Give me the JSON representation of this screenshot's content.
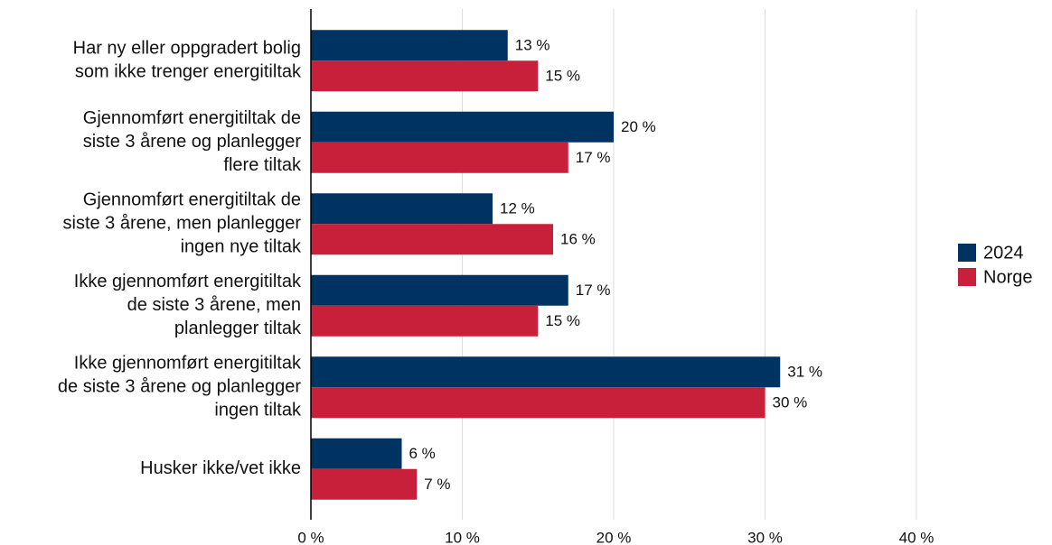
{
  "chart_data": {
    "type": "barh",
    "categories": [
      [
        "Har ny eller oppgradert bolig",
        "som ikke trenger energitiltak"
      ],
      [
        "Gjennomført energitiltak de",
        "siste 3 årene og planlegger",
        "flere tiltak"
      ],
      [
        "Gjennomført energitiltak de",
        "siste 3 årene, men planlegger",
        "ingen nye tiltak"
      ],
      [
        "Ikke gjennomført energitiltak",
        "de siste 3 årene, men",
        "planlegger tiltak"
      ],
      [
        "Ikke gjennomført energitiltak",
        "de siste 3 årene og planlegger",
        "ingen tiltak"
      ],
      [
        "Husker ikke/vet ikke"
      ]
    ],
    "series": [
      {
        "name": "2024",
        "color": "#003361",
        "values": [
          13,
          20,
          12,
          17,
          31,
          6
        ],
        "value_labels": [
          "13 %",
          "20 %",
          "12 %",
          "17 %",
          "31 %",
          "6 %"
        ]
      },
      {
        "name": "Norge",
        "color": "#c8203a",
        "values": [
          15,
          17,
          16,
          15,
          30,
          7
        ],
        "value_labels": [
          "15 %",
          "17 %",
          "16 %",
          "15 %",
          "30 %",
          "7 %"
        ]
      }
    ],
    "xlim": [
      0,
      40
    ],
    "xticks": [
      {
        "value": 0,
        "label": "0 %"
      },
      {
        "value": 10,
        "label": "10 %"
      },
      {
        "value": 20,
        "label": "20 %"
      },
      {
        "value": 30,
        "label": "30 %"
      },
      {
        "value": 40,
        "label": "40 %"
      }
    ],
    "grid": true,
    "legend": "right"
  }
}
